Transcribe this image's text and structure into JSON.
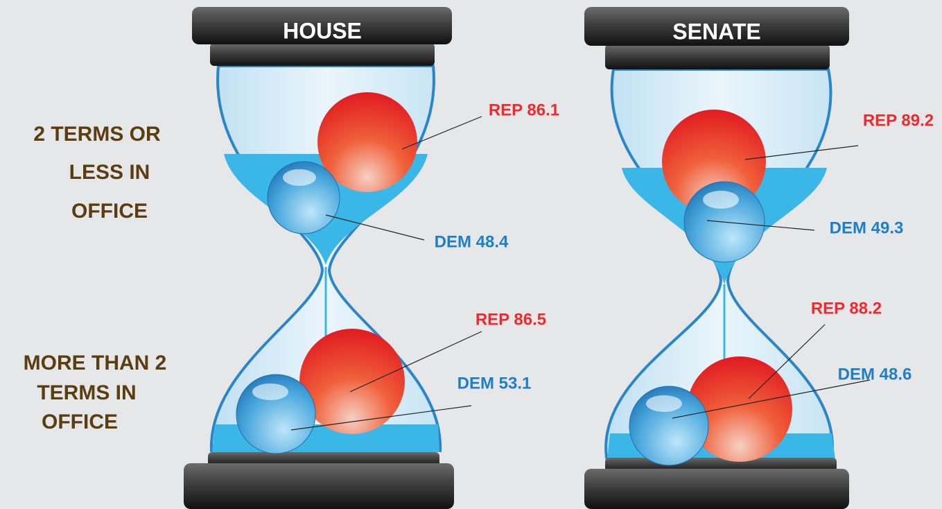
{
  "row_labels": [
    [
      "2 TERMS OR",
      "LESS IN",
      "OFFICE"
    ],
    [
      "MORE THAN 2",
      "TERMS IN",
      "OFFICE"
    ]
  ],
  "panels": [
    {
      "title": "HOUSE",
      "top": {
        "rep": "REP 86.1",
        "dem": "DEM 48.4"
      },
      "bottom": {
        "rep": "REP 86.5",
        "dem": "DEM 53.1"
      }
    },
    {
      "title": "SENATE",
      "top": {
        "rep": "REP 89.2",
        "dem": "DEM 49.3"
      },
      "bottom": {
        "rep": "REP 88.2",
        "dem": "DEM 48.6"
      }
    }
  ]
}
